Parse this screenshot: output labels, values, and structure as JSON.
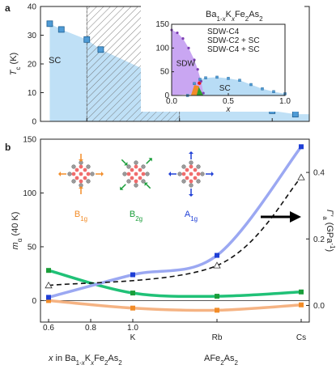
{
  "chart_data": [
    {
      "panel": "a",
      "type": "area",
      "ylabel": "T_c (K)",
      "xlim": [
        0.5,
        1.08
      ],
      "ylim": [
        0,
        40
      ],
      "yticks": [
        0,
        10,
        20,
        30,
        40
      ],
      "xticks": [
        0.6,
        0.8,
        1.0
      ],
      "sc_label": "SC",
      "hatched_range": [
        0.6,
        0.8
      ],
      "points": [
        {
          "x": 0.52,
          "y": 34
        },
        {
          "x": 0.545,
          "y": 32
        },
        {
          "x": 0.6,
          "y": 28.5
        },
        {
          "x": 0.63,
          "y": 25
        },
        {
          "x": 0.82,
          "y": 11
        },
        {
          "x": 1.0,
          "y": 3.7
        },
        {
          "x": 1.05,
          "y": 2.5
        }
      ],
      "inset": {
        "title": "Ba1-xKxFe2As2",
        "xlabel": "x",
        "xlim": [
          0,
          1
        ],
        "ylim": [
          0,
          150
        ],
        "xticks": [
          0.0,
          0.5,
          1.0
        ],
        "yticks": [
          0,
          50,
          100,
          150
        ],
        "regions": [
          {
            "name": "SDW",
            "color": "#c9a6f2"
          },
          {
            "name": "SC",
            "color": "#b8dcf5"
          }
        ],
        "legend": [
          {
            "name": "SDW-C4",
            "color": "#e31a1c"
          },
          {
            "name": "SDW-C2 + SC",
            "color": "#f28c28"
          },
          {
            "name": "SDW-C4 + SC",
            "color": "#2ca02c"
          }
        ],
        "sdw_boundary": [
          [
            0,
            138
          ],
          [
            0.05,
            132
          ],
          [
            0.1,
            120
          ],
          [
            0.15,
            100
          ],
          [
            0.2,
            75
          ],
          [
            0.23,
            55
          ],
          [
            0.26,
            30
          ],
          [
            0.28,
            5
          ]
        ],
        "sc_dome": [
          [
            0.14,
            0
          ],
          [
            0.2,
            25
          ],
          [
            0.25,
            34
          ],
          [
            0.3,
            37
          ],
          [
            0.4,
            38.5
          ],
          [
            0.5,
            36
          ],
          [
            0.6,
            32
          ],
          [
            0.7,
            23
          ],
          [
            0.8,
            14
          ],
          [
            0.9,
            8
          ],
          [
            1.0,
            3.5
          ]
        ]
      }
    },
    {
      "panel": "b",
      "type": "line",
      "ylabel_left": "m_α (40 K)",
      "ylabel_right": "Γ'_a (GPa⁻¹)",
      "ylim_left": [
        -20,
        150
      ],
      "ylim_right": [
        -0.05,
        0.5
      ],
      "yticks_left": [
        0,
        50,
        100,
        150
      ],
      "yticks_right": [
        0.0,
        0.2,
        0.4
      ],
      "xtick_labels": [
        "0.6",
        "0.8",
        "1.0",
        "K",
        "Rb",
        "Cs"
      ],
      "xaxis_label_left": "x in Ba1-xKxFe2As2",
      "xaxis_label_right": "AFe2As2",
      "modes": [
        {
          "name": "B1g",
          "color": "#f28c28"
        },
        {
          "name": "B2g",
          "color": "#1a9e3a"
        },
        {
          "name": "A1g",
          "color": "#1f3fd6"
        }
      ],
      "series": [
        {
          "name": "B1g",
          "color": "#f28c28",
          "fit_color": "#f5b383",
          "points": [
            [
              0.6,
              0
            ],
            [
              1.0,
              -7
            ],
            [
              1.4,
              -9
            ],
            [
              1.8,
              -4
            ]
          ]
        },
        {
          "name": "B2g",
          "color": "#1a9e3a",
          "fit_color": "#20c177",
          "points": [
            [
              0.6,
              28
            ],
            [
              1.0,
              7
            ],
            [
              1.4,
              4
            ],
            [
              1.8,
              8
            ]
          ]
        },
        {
          "name": "A1g",
          "color": "#1f3fd6",
          "fit_color": "#9ba8f2",
          "points": [
            [
              0.6,
              3
            ],
            [
              1.0,
              24
            ],
            [
              1.4,
              42
            ],
            [
              1.8,
              143
            ]
          ]
        },
        {
          "name": "Γ'_a",
          "color": "#111111",
          "dashed": true,
          "axis": "right",
          "points": [
            [
              0.6,
              0.06
            ],
            [
              1.4,
              0.12
            ],
            [
              1.8,
              0.385
            ]
          ]
        }
      ]
    }
  ]
}
